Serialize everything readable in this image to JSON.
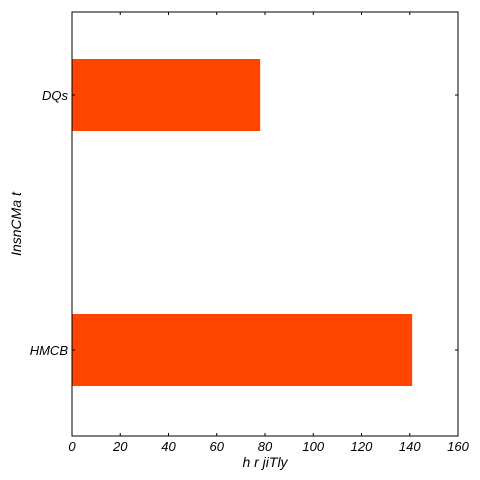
{
  "chart_data": {
    "type": "bar",
    "orientation": "horizontal",
    "categories": [
      "DQs",
      "HMCB"
    ],
    "values": [
      78,
      141
    ],
    "xlabel": "h r jiTly",
    "ylabel": "InsnCMa t",
    "xlim": [
      0,
      160
    ],
    "xticks": [
      0,
      20,
      40,
      60,
      80,
      100,
      120,
      140,
      160
    ],
    "grid": false,
    "legend": "none",
    "bar_color": "#ff4500"
  }
}
